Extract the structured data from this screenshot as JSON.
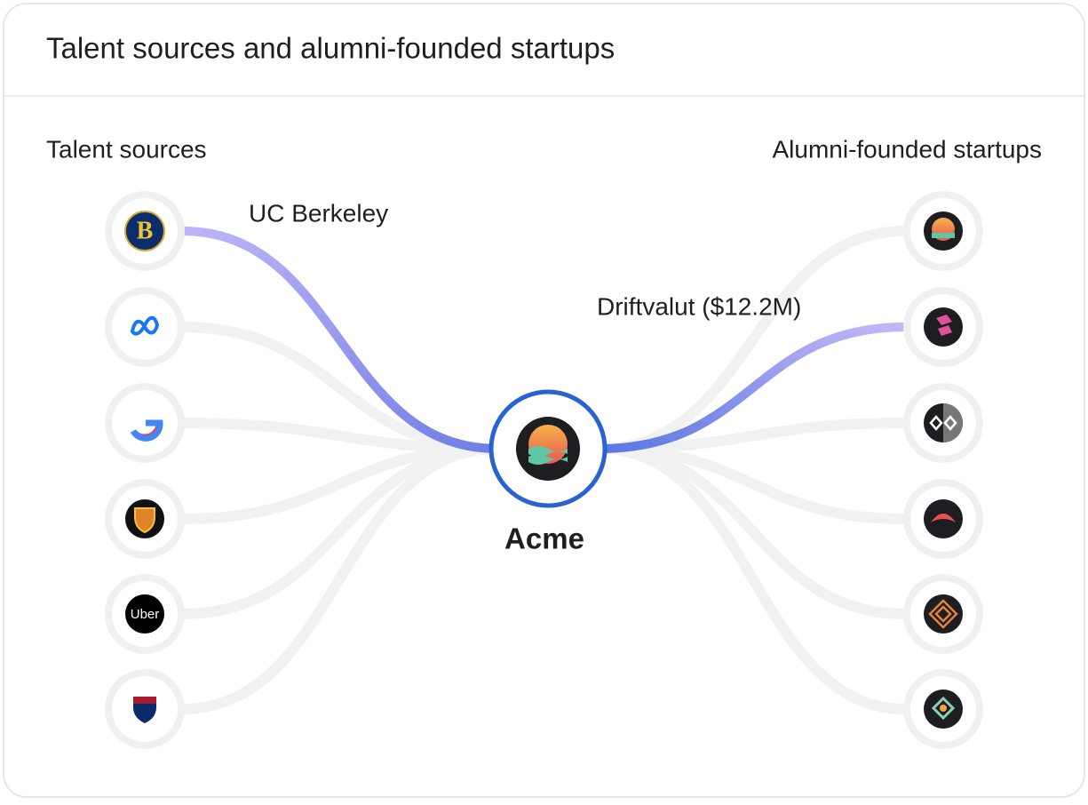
{
  "header": {
    "title": "Talent sources and alumni-founded startups"
  },
  "left": {
    "heading": "Talent sources",
    "highlight_label": "UC Berkeley",
    "logos": {
      "berkeley": "B",
      "uber": "Uber"
    }
  },
  "right": {
    "heading": "Alumni-founded startups",
    "highlight_label": "Driftvalut ($12.2M)"
  },
  "center": {
    "label": "Acme"
  }
}
